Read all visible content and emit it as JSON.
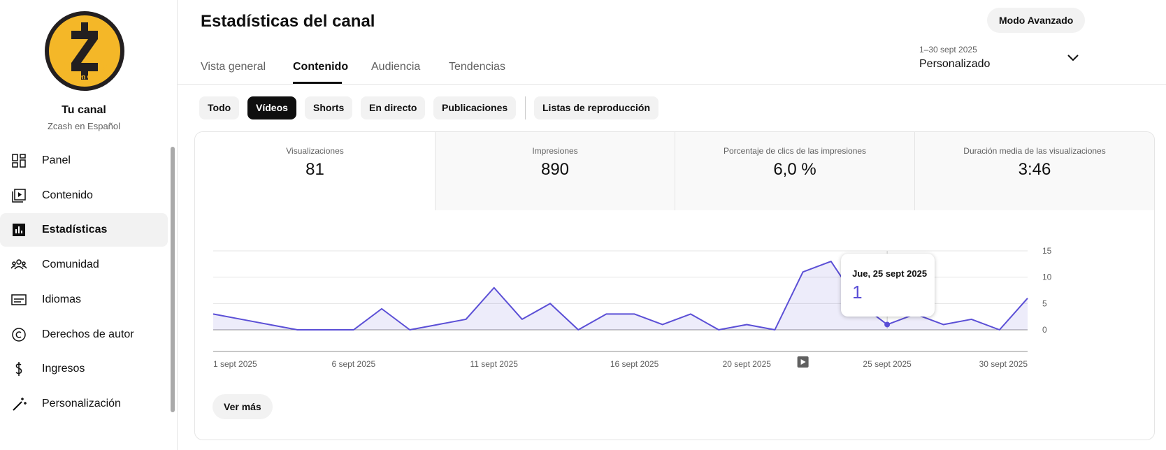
{
  "sidebar": {
    "logo_text": "Zcash en español",
    "channel_title": "Tu canal",
    "channel_name": "Zcash en Español",
    "items": [
      {
        "label": "Panel"
      },
      {
        "label": "Contenido"
      },
      {
        "label": "Estadísticas"
      },
      {
        "label": "Comunidad"
      },
      {
        "label": "Idiomas"
      },
      {
        "label": "Derechos de autor"
      },
      {
        "label": "Ingresos"
      },
      {
        "label": "Personalización"
      }
    ]
  },
  "header": {
    "title": "Estadísticas del canal",
    "advanced_button": "Modo Avanzado",
    "tabs": [
      "Vista general",
      "Contenido",
      "Audiencia",
      "Tendencias"
    ],
    "date_range": "1–30 sept 2025",
    "date_mode": "Personalizado"
  },
  "chips": [
    "Todo",
    "Vídeos",
    "Shorts",
    "En directo",
    "Publicaciones",
    "Listas de reproducción"
  ],
  "metrics": [
    {
      "label": "Visualizaciones",
      "value": "81"
    },
    {
      "label": "Impresiones",
      "value": "890"
    },
    {
      "label": "Porcentaje de clics de las impresiones",
      "value": "6,0 %"
    },
    {
      "label": "Duración media de las visualizaciones",
      "value": "3:46"
    }
  ],
  "chart_data": {
    "type": "line",
    "categories": [
      "1 sept 2025",
      null,
      null,
      null,
      null,
      "6 sept 2025",
      null,
      null,
      null,
      null,
      "11 sept 2025",
      null,
      null,
      null,
      null,
      "16 sept 2025",
      null,
      null,
      null,
      "20 sept 2025",
      null,
      null,
      null,
      null,
      "25 sept 2025",
      null,
      null,
      null,
      null,
      "30 sept 2025"
    ],
    "series": [
      {
        "name": "Visualizaciones",
        "color": "#5b4fd6",
        "values": [
          3,
          2,
          1,
          0,
          0,
          0,
          4,
          0,
          1,
          2,
          8,
          2,
          5,
          0,
          3,
          3,
          1,
          3,
          0,
          1,
          0,
          11,
          13,
          5,
          1,
          3,
          1,
          2,
          0,
          6
        ]
      }
    ],
    "ylim": [
      0,
      15
    ],
    "yticks": [
      0,
      5,
      10,
      15
    ],
    "grid": true,
    "tooltip": {
      "date": "Jue, 25 sept 2025"
    }
  },
  "more_button": "Ver más"
}
